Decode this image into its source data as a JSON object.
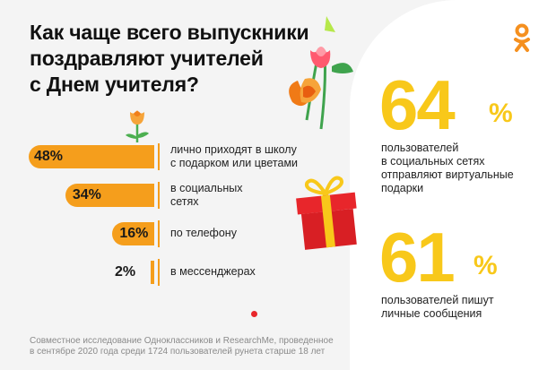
{
  "title": {
    "line1": "Как чаще всего выпускники",
    "line2": "поздравляют учителей",
    "line3": "с Днем учителя?"
  },
  "chart_data": {
    "type": "bar",
    "orientation": "horizontal",
    "title": "Как чаще всего выпускники поздравляют учителей с Днем учителя?",
    "unit": "%",
    "categories": [
      "лично приходят в школу с подарком или цветами",
      "в социальных сетях",
      "по телефону",
      "в мессенджерах"
    ],
    "values": [
      48,
      34,
      16,
      2
    ],
    "value_labels": [
      "48%",
      "34%",
      "16%",
      "2%"
    ],
    "label_lines": [
      [
        "лично приходят в школу",
        "с подарком или цветами"
      ],
      [
        "в социальных",
        "сетях"
      ],
      [
        "по телефону"
      ],
      [
        "в мессенджерах"
      ]
    ],
    "bar_color": "#f59e1c"
  },
  "stats": [
    {
      "number": "64",
      "unit": "%",
      "lines": [
        "пользователей",
        "в социальных сетях",
        "отправляют виртуальные",
        "подарки"
      ]
    },
    {
      "number": "61",
      "unit": "%",
      "lines": [
        "пользователей пишут",
        "личные сообщения"
      ]
    }
  ],
  "footnote": {
    "line1": "Совместное исследование Одноклассников и ResearchMe, проведенное",
    "line2": "в сентябре 2020 года среди 1724 пользователей рунета старше 18 лет"
  },
  "colors": {
    "accent_orange": "#f59e1c",
    "big_number_yellow": "#f8c81a",
    "gift_red": "#e8262b",
    "background": "#f4f4f4"
  },
  "icons": [
    "odnoklassniki-logo-icon",
    "tulip-icon",
    "gift-box-icon",
    "flower-bouquet-icon"
  ]
}
